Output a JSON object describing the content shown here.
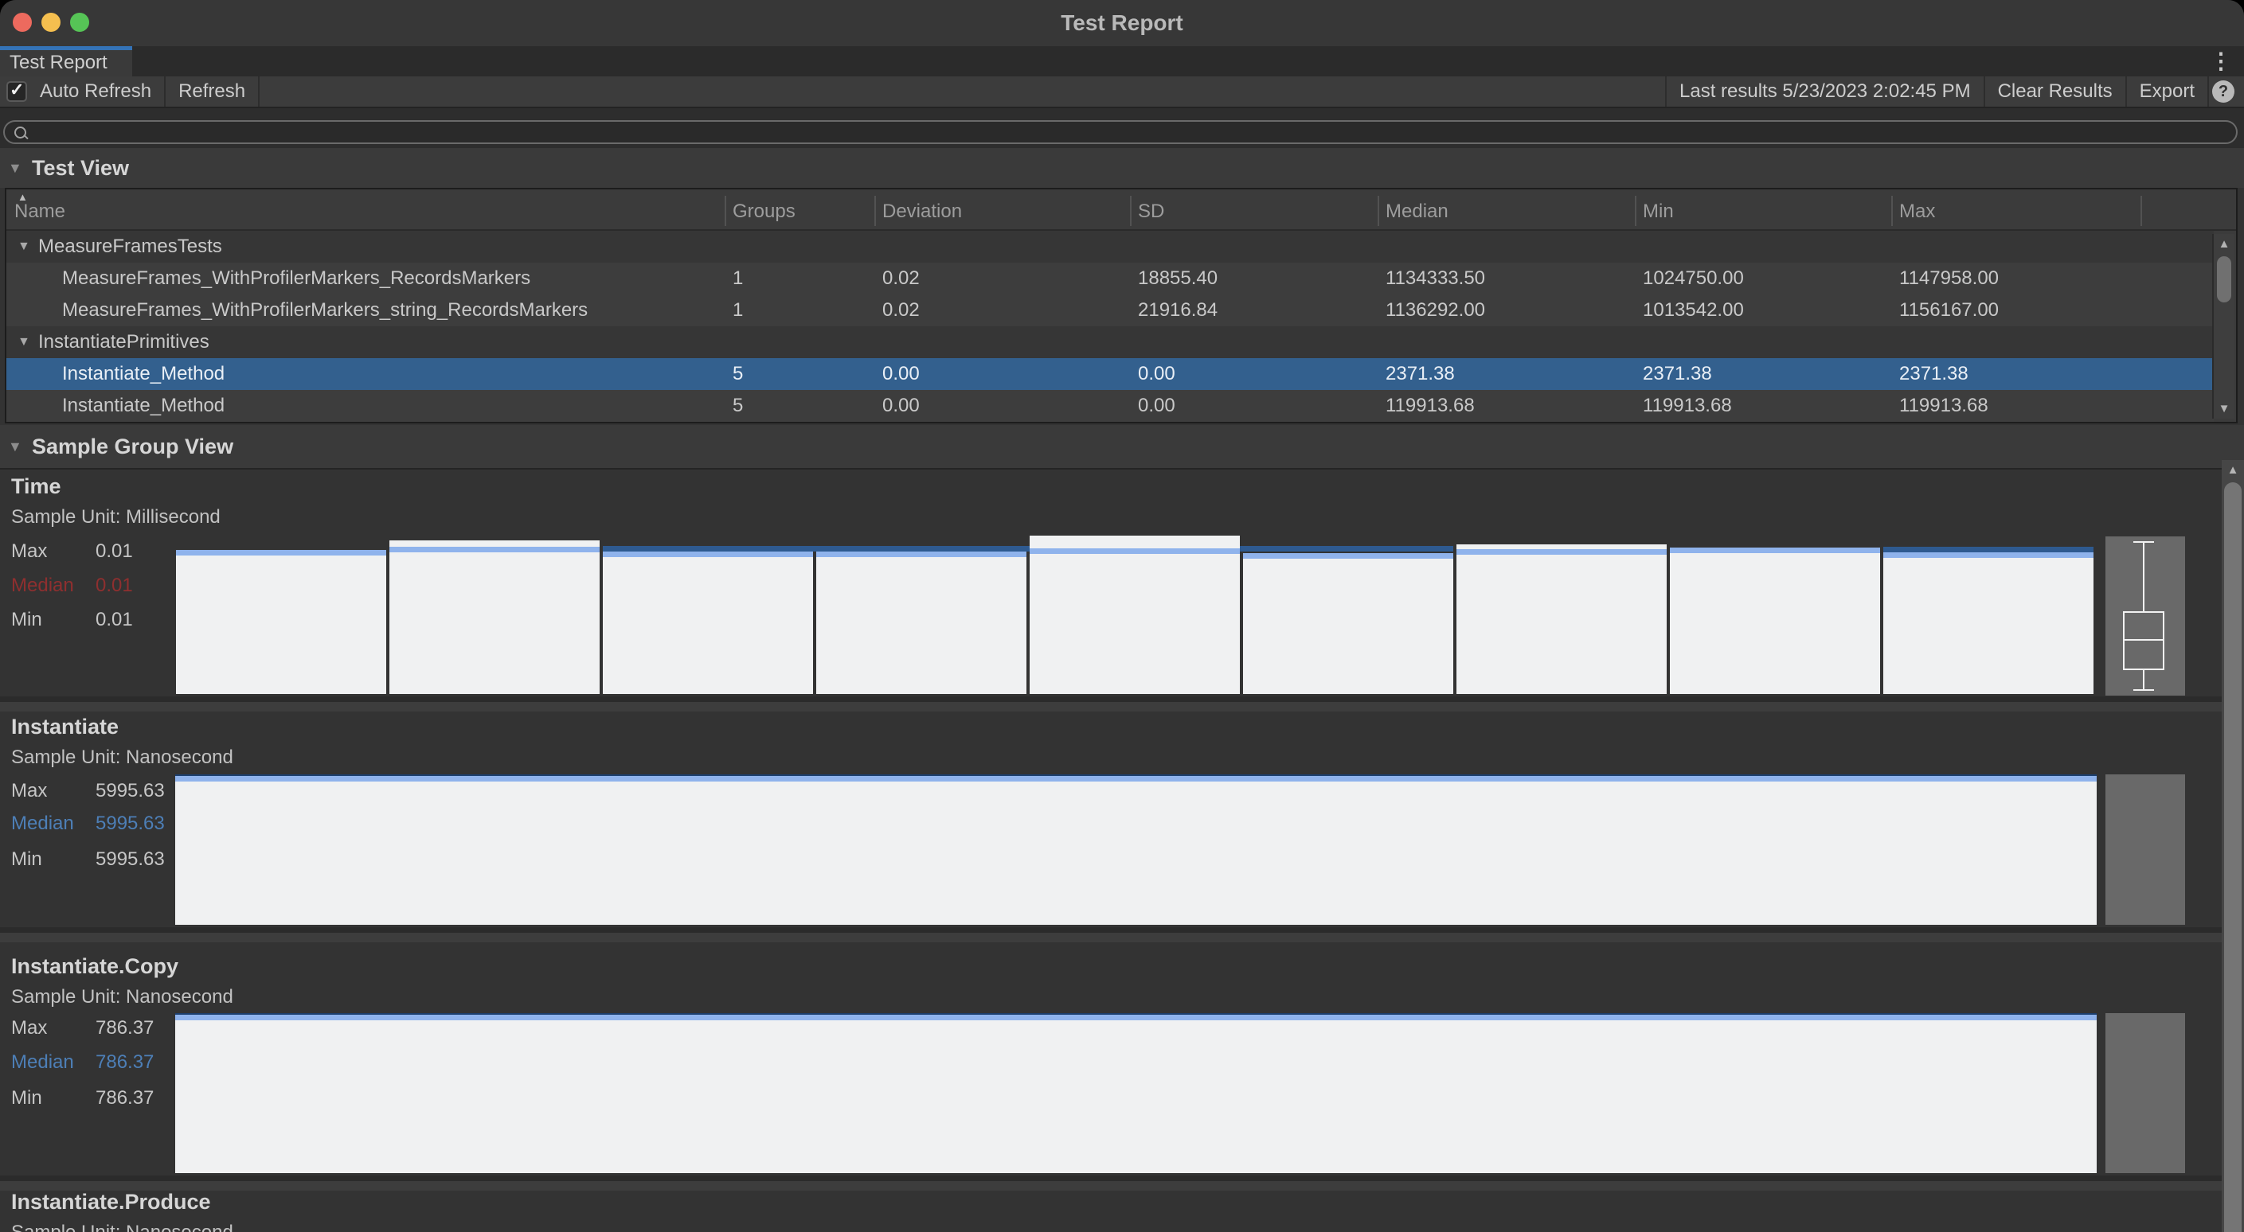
{
  "window": {
    "title": "Test Report"
  },
  "tab_bar": {
    "active_tab": "Test Report",
    "kebab_menu_icon": "kebab-menu"
  },
  "toolbar": {
    "auto_refresh": {
      "label": "Auto Refresh",
      "checked": true
    },
    "refresh_label": "Refresh",
    "last_results": "Last results 5/23/2023 2:02:45 PM",
    "clear_results_label": "Clear Results",
    "export_label": "Export",
    "help_icon": "?"
  },
  "search": {
    "value": "",
    "icon": "magnifier"
  },
  "test_view": {
    "header": "Test View",
    "columns": [
      "Name",
      "Groups",
      "Deviation",
      "SD",
      "Median",
      "Min",
      "Max"
    ],
    "rows": [
      {
        "type": "group",
        "name": "MeasureFramesTests"
      },
      {
        "type": "test",
        "name": "MeasureFrames_WithProfilerMarkers_RecordsMarkers",
        "groups": "1",
        "deviation": "0.02",
        "sd": "18855.40",
        "median": "1134333.50",
        "min": "1024750.00",
        "max": "1147958.00",
        "selected": false
      },
      {
        "type": "test",
        "name": "MeasureFrames_WithProfilerMarkers_string_RecordsMarkers",
        "groups": "1",
        "deviation": "0.02",
        "sd": "21916.84",
        "median": "1136292.00",
        "min": "1013542.00",
        "max": "1156167.00",
        "selected": false
      },
      {
        "type": "group",
        "name": "InstantiatePrimitives"
      },
      {
        "type": "test",
        "name": "Instantiate_Method",
        "groups": "5",
        "deviation": "0.00",
        "sd": "0.00",
        "median": "2371.38",
        "min": "2371.38",
        "max": "2371.38",
        "selected": true
      },
      {
        "type": "test",
        "name": "Instantiate_Method",
        "groups": "5",
        "deviation": "0.00",
        "sd": "0.00",
        "median": "119913.68",
        "min": "119913.68",
        "max": "119913.68",
        "selected": false
      }
    ]
  },
  "sample_group_view": {
    "header": "Sample Group View",
    "stat_labels": [
      "Max",
      "Median",
      "Min"
    ],
    "groups": [
      {
        "name": "Time",
        "sample_unit": "Sample Unit: Millisecond",
        "max": "0.01",
        "median": "0.01",
        "min": "0.01",
        "median_color": "#8f2f2f",
        "chart": "multi-bar-with-boxplot"
      },
      {
        "name": "Instantiate",
        "sample_unit": "Sample Unit: Nanosecond",
        "max": "5995.63",
        "median": "5995.63",
        "min": "5995.63",
        "median_color": "#4d7fb7",
        "chart": "single-bar"
      },
      {
        "name": "Instantiate.Copy",
        "sample_unit": "Sample Unit: Nanosecond",
        "max": "786.37",
        "median": "786.37",
        "min": "786.37",
        "median_color": "#4d7fb7",
        "chart": "single-bar"
      },
      {
        "name": "Instantiate.Produce",
        "sample_unit": "Sample Unit: Nanosecond",
        "chart": "clipped"
      }
    ]
  },
  "chart_data": [
    {
      "type": "bar",
      "title": "Time",
      "unit": "Millisecond",
      "max": 0.01,
      "median": 0.01,
      "min": 0.01,
      "sample_bars": 9,
      "boxplot": true
    },
    {
      "type": "bar",
      "title": "Instantiate",
      "unit": "Nanosecond",
      "max": 5995.63,
      "median": 5995.63,
      "min": 5995.63,
      "sample_bars": 1,
      "boxplot": false
    },
    {
      "type": "bar",
      "title": "Instantiate.Copy",
      "unit": "Nanosecond",
      "max": 786.37,
      "median": 786.37,
      "min": 786.37,
      "sample_bars": 1,
      "boxplot": false
    }
  ],
  "colors": {
    "selection": "#33608e",
    "tab_accent": "#3473b7",
    "bar_fill": "#f0f1f2",
    "bar_median_line": "#8fb3ec",
    "bar_dark_band": "#2e5a90",
    "median_red": "#8f2f2f",
    "median_blue": "#4d7fb7",
    "boxplot_bg": "#696969"
  }
}
